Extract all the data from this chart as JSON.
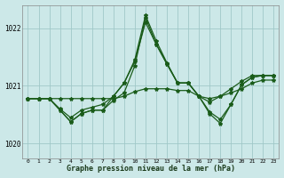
{
  "title": "Graphe pression niveau de la mer (hPa)",
  "bg_color": "#cce8e8",
  "grid_color_h": "#a0c8c8",
  "grid_color_v": "#a0c8c8",
  "line_color": "#1a5c1a",
  "xlim": [
    -0.5,
    23.5
  ],
  "ylim": [
    1019.75,
    1022.4
  ],
  "yticks": [
    1020,
    1021,
    1022
  ],
  "xticks": [
    0,
    1,
    2,
    3,
    4,
    5,
    6,
    7,
    8,
    9,
    10,
    11,
    12,
    13,
    14,
    15,
    16,
    17,
    18,
    19,
    20,
    21,
    22,
    23
  ],
  "series": [
    [
      1020.78,
      1020.78,
      1020.78,
      1020.78,
      1020.78,
      1020.78,
      1020.78,
      1020.78,
      1020.78,
      1020.82,
      1020.9,
      1020.95,
      1020.95,
      1020.95,
      1020.92,
      1020.92,
      1020.82,
      1020.78,
      1020.82,
      1020.88,
      1020.95,
      1021.05,
      1021.1,
      1021.1
    ],
    [
      1020.78,
      1020.78,
      1020.78,
      1020.6,
      1020.45,
      1020.58,
      1020.63,
      1020.68,
      1020.82,
      1021.05,
      1021.45,
      1022.22,
      1021.78,
      1021.4,
      1021.05,
      1021.05,
      1020.82,
      1020.72,
      1020.82,
      1020.95,
      1021.08,
      1021.18,
      1021.18,
      1021.18
    ],
    [
      1020.78,
      1020.78,
      1020.78,
      1020.58,
      1020.38,
      1020.52,
      1020.58,
      1020.58,
      1020.75,
      1020.88,
      1021.35,
      1022.18,
      1021.72,
      1021.38,
      1021.05,
      1021.05,
      1020.82,
      1020.52,
      1020.35,
      1020.68,
      1021.02,
      1021.15,
      1021.18,
      1021.18
    ],
    [
      1020.78,
      1020.78,
      1020.78,
      1020.58,
      1020.38,
      1020.52,
      1020.58,
      1020.58,
      1020.82,
      1021.05,
      1021.42,
      1022.1,
      1021.72,
      1021.38,
      1021.05,
      1021.05,
      1020.82,
      1020.55,
      1020.42,
      1020.68,
      1021.02,
      1021.15,
      1021.18,
      1021.18
    ]
  ]
}
